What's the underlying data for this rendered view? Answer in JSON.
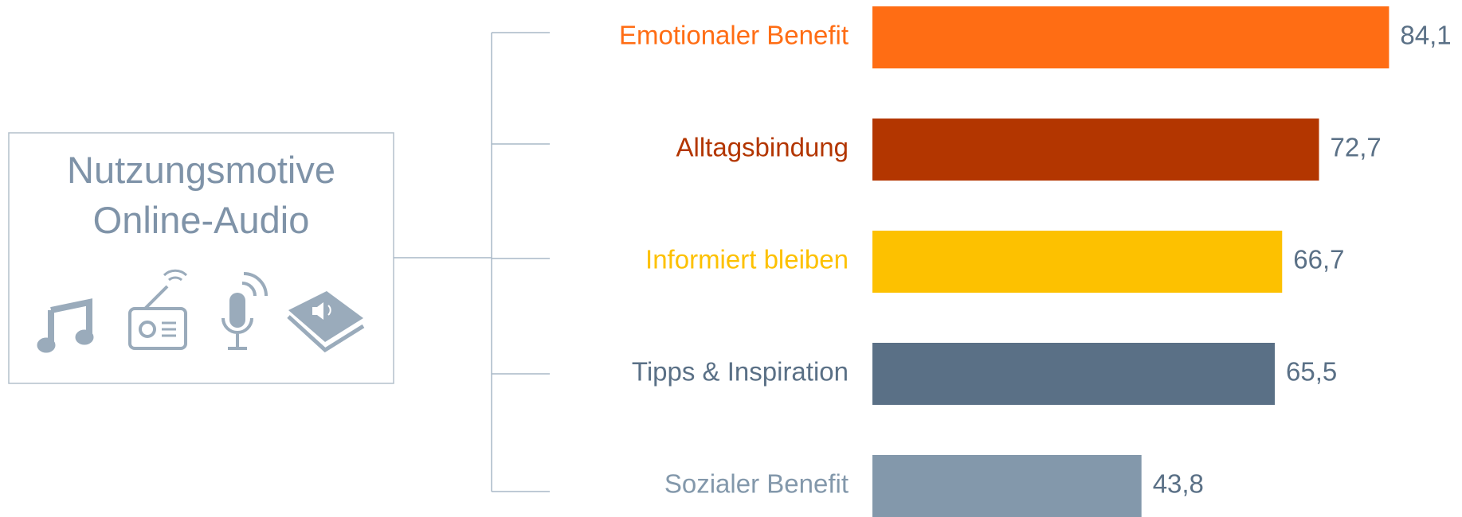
{
  "chart_data": {
    "type": "bar",
    "orientation": "horizontal",
    "title": "Nutzungsmotive Online-Audio",
    "categories": [
      "Emotionaler Benefit",
      "Alltagsbindung",
      "Informiert bleiben",
      "Tipps & Inspiration",
      "Sozialer Benefit"
    ],
    "values": [
      84.1,
      72.7,
      66.7,
      65.5,
      43.8
    ],
    "value_labels": [
      "84,1",
      "72,7",
      "66,7",
      "65,5",
      "43,8"
    ],
    "colors": [
      "#ff6d14",
      "#b33600",
      "#fdc100",
      "#5a7086",
      "#8398ab"
    ]
  }
}
